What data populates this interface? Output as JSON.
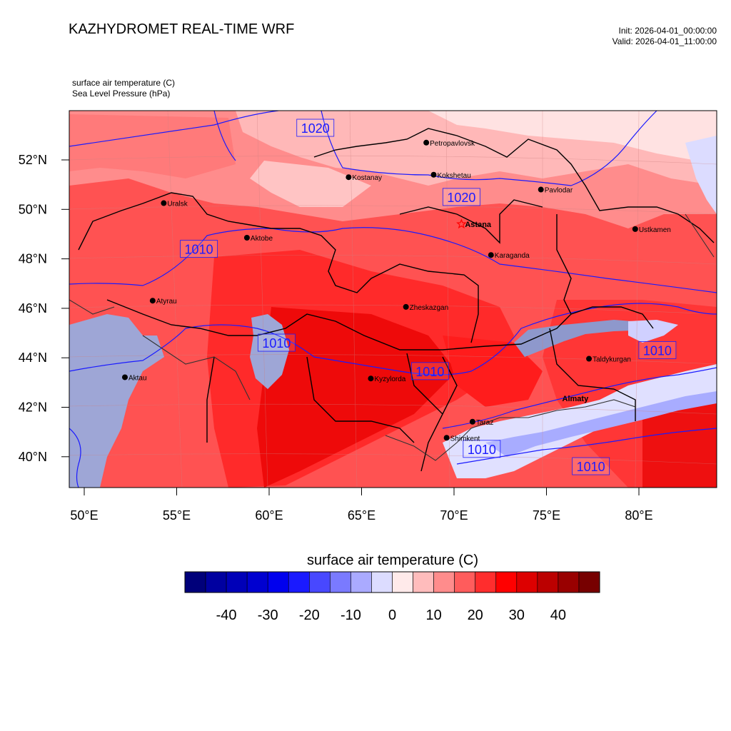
{
  "header": {
    "title": "KAZHYDROMET REAL-TIME WRF",
    "init": "Init: 2026-04-01_00:00:00",
    "valid": "Valid: 2026-04-01_11:00:00",
    "var1": "surface air temperature   (C)",
    "var2": "Sea Level Pressure   (hPa)"
  },
  "axes": {
    "lat_ticks": [
      "52°N",
      "50°N",
      "48°N",
      "46°N",
      "44°N",
      "42°N",
      "40°N"
    ],
    "lon_ticks": [
      "50°E",
      "55°E",
      "60°E",
      "65°E",
      "70°E",
      "75°E",
      "80°E"
    ]
  },
  "cities": [
    {
      "name": "Petropavlovsk",
      "lon": 68.5,
      "lat": 52.7
    },
    {
      "name": "Kostanay",
      "lon": 64.3,
      "lat": 51.3
    },
    {
      "name": "Kokshetau",
      "lon": 68.9,
      "lat": 51.4
    },
    {
      "name": "Pavlodar",
      "lon": 74.7,
      "lat": 50.8
    },
    {
      "name": "Uralsk",
      "lon": 54.3,
      "lat": 50.25
    },
    {
      "name": "Astana",
      "lon": 70.4,
      "lat": 49.4,
      "capital": true
    },
    {
      "name": "Aktobe",
      "lon": 58.8,
      "lat": 48.85
    },
    {
      "name": "Ustkamen",
      "lon": 79.8,
      "lat": 49.2
    },
    {
      "name": "Karaganda",
      "lon": 72.0,
      "lat": 48.15
    },
    {
      "name": "Atyrau",
      "lon": 53.7,
      "lat": 46.3
    },
    {
      "name": "Zheskazgan",
      "lon": 67.4,
      "lat": 46.05
    },
    {
      "name": "Taldykurgan",
      "lon": 77.3,
      "lat": 43.95
    },
    {
      "name": "Aktau",
      "lon": 52.2,
      "lat": 43.2
    },
    {
      "name": "Kyzylorda",
      "lon": 65.5,
      "lat": 43.15
    },
    {
      "name": "Almaty",
      "lon": 76.7,
      "lat": 42.35,
      "bold": true
    },
    {
      "name": "Taraz",
      "lon": 71.0,
      "lat": 41.4
    },
    {
      "name": "Shimkent",
      "lon": 69.6,
      "lat": 40.75
    }
  ],
  "isobar_labels": [
    {
      "text": "1020",
      "lon": 62.5,
      "lat": 53.3
    },
    {
      "text": "1020",
      "lon": 70.4,
      "lat": 50.5
    },
    {
      "text": "1010",
      "lon": 56.2,
      "lat": 48.4
    },
    {
      "text": "1010",
      "lon": 60.4,
      "lat": 44.6
    },
    {
      "text": "1010",
      "lon": 68.7,
      "lat": 43.45
    },
    {
      "text": "1010",
      "lon": 81.0,
      "lat": 44.3
    },
    {
      "text": "1010",
      "lon": 71.5,
      "lat": 40.3
    },
    {
      "text": "1010",
      "lon": 77.4,
      "lat": 39.6
    }
  ],
  "colorbar": {
    "title": "surface air temperature  (C)",
    "colors": [
      "#00007a",
      "#0000a0",
      "#0000b8",
      "#0000d0",
      "#0000ee",
      "#1a1aff",
      "#4848ff",
      "#7a7aff",
      "#aaaaff",
      "#dcdcff",
      "#ffeaea",
      "#ffbcbc",
      "#ff8c8c",
      "#ff5c5c",
      "#ff2d2d",
      "#ff0000",
      "#dd0000",
      "#bb0000",
      "#990000",
      "#770000"
    ],
    "labels": [
      "-40",
      "-30",
      "-20",
      "-10",
      "0",
      "10",
      "20",
      "30",
      "40"
    ]
  },
  "colors": {
    "temp_warmest": "#e60000",
    "temp_warm": "#ff3030",
    "temp_mild": "#ff6a6a",
    "temp_cool": "#ffa8a8",
    "temp_cold": "#ffdcdc",
    "water": "#9ea6d6",
    "isobar": "#1a1aff",
    "border": "#000000"
  }
}
